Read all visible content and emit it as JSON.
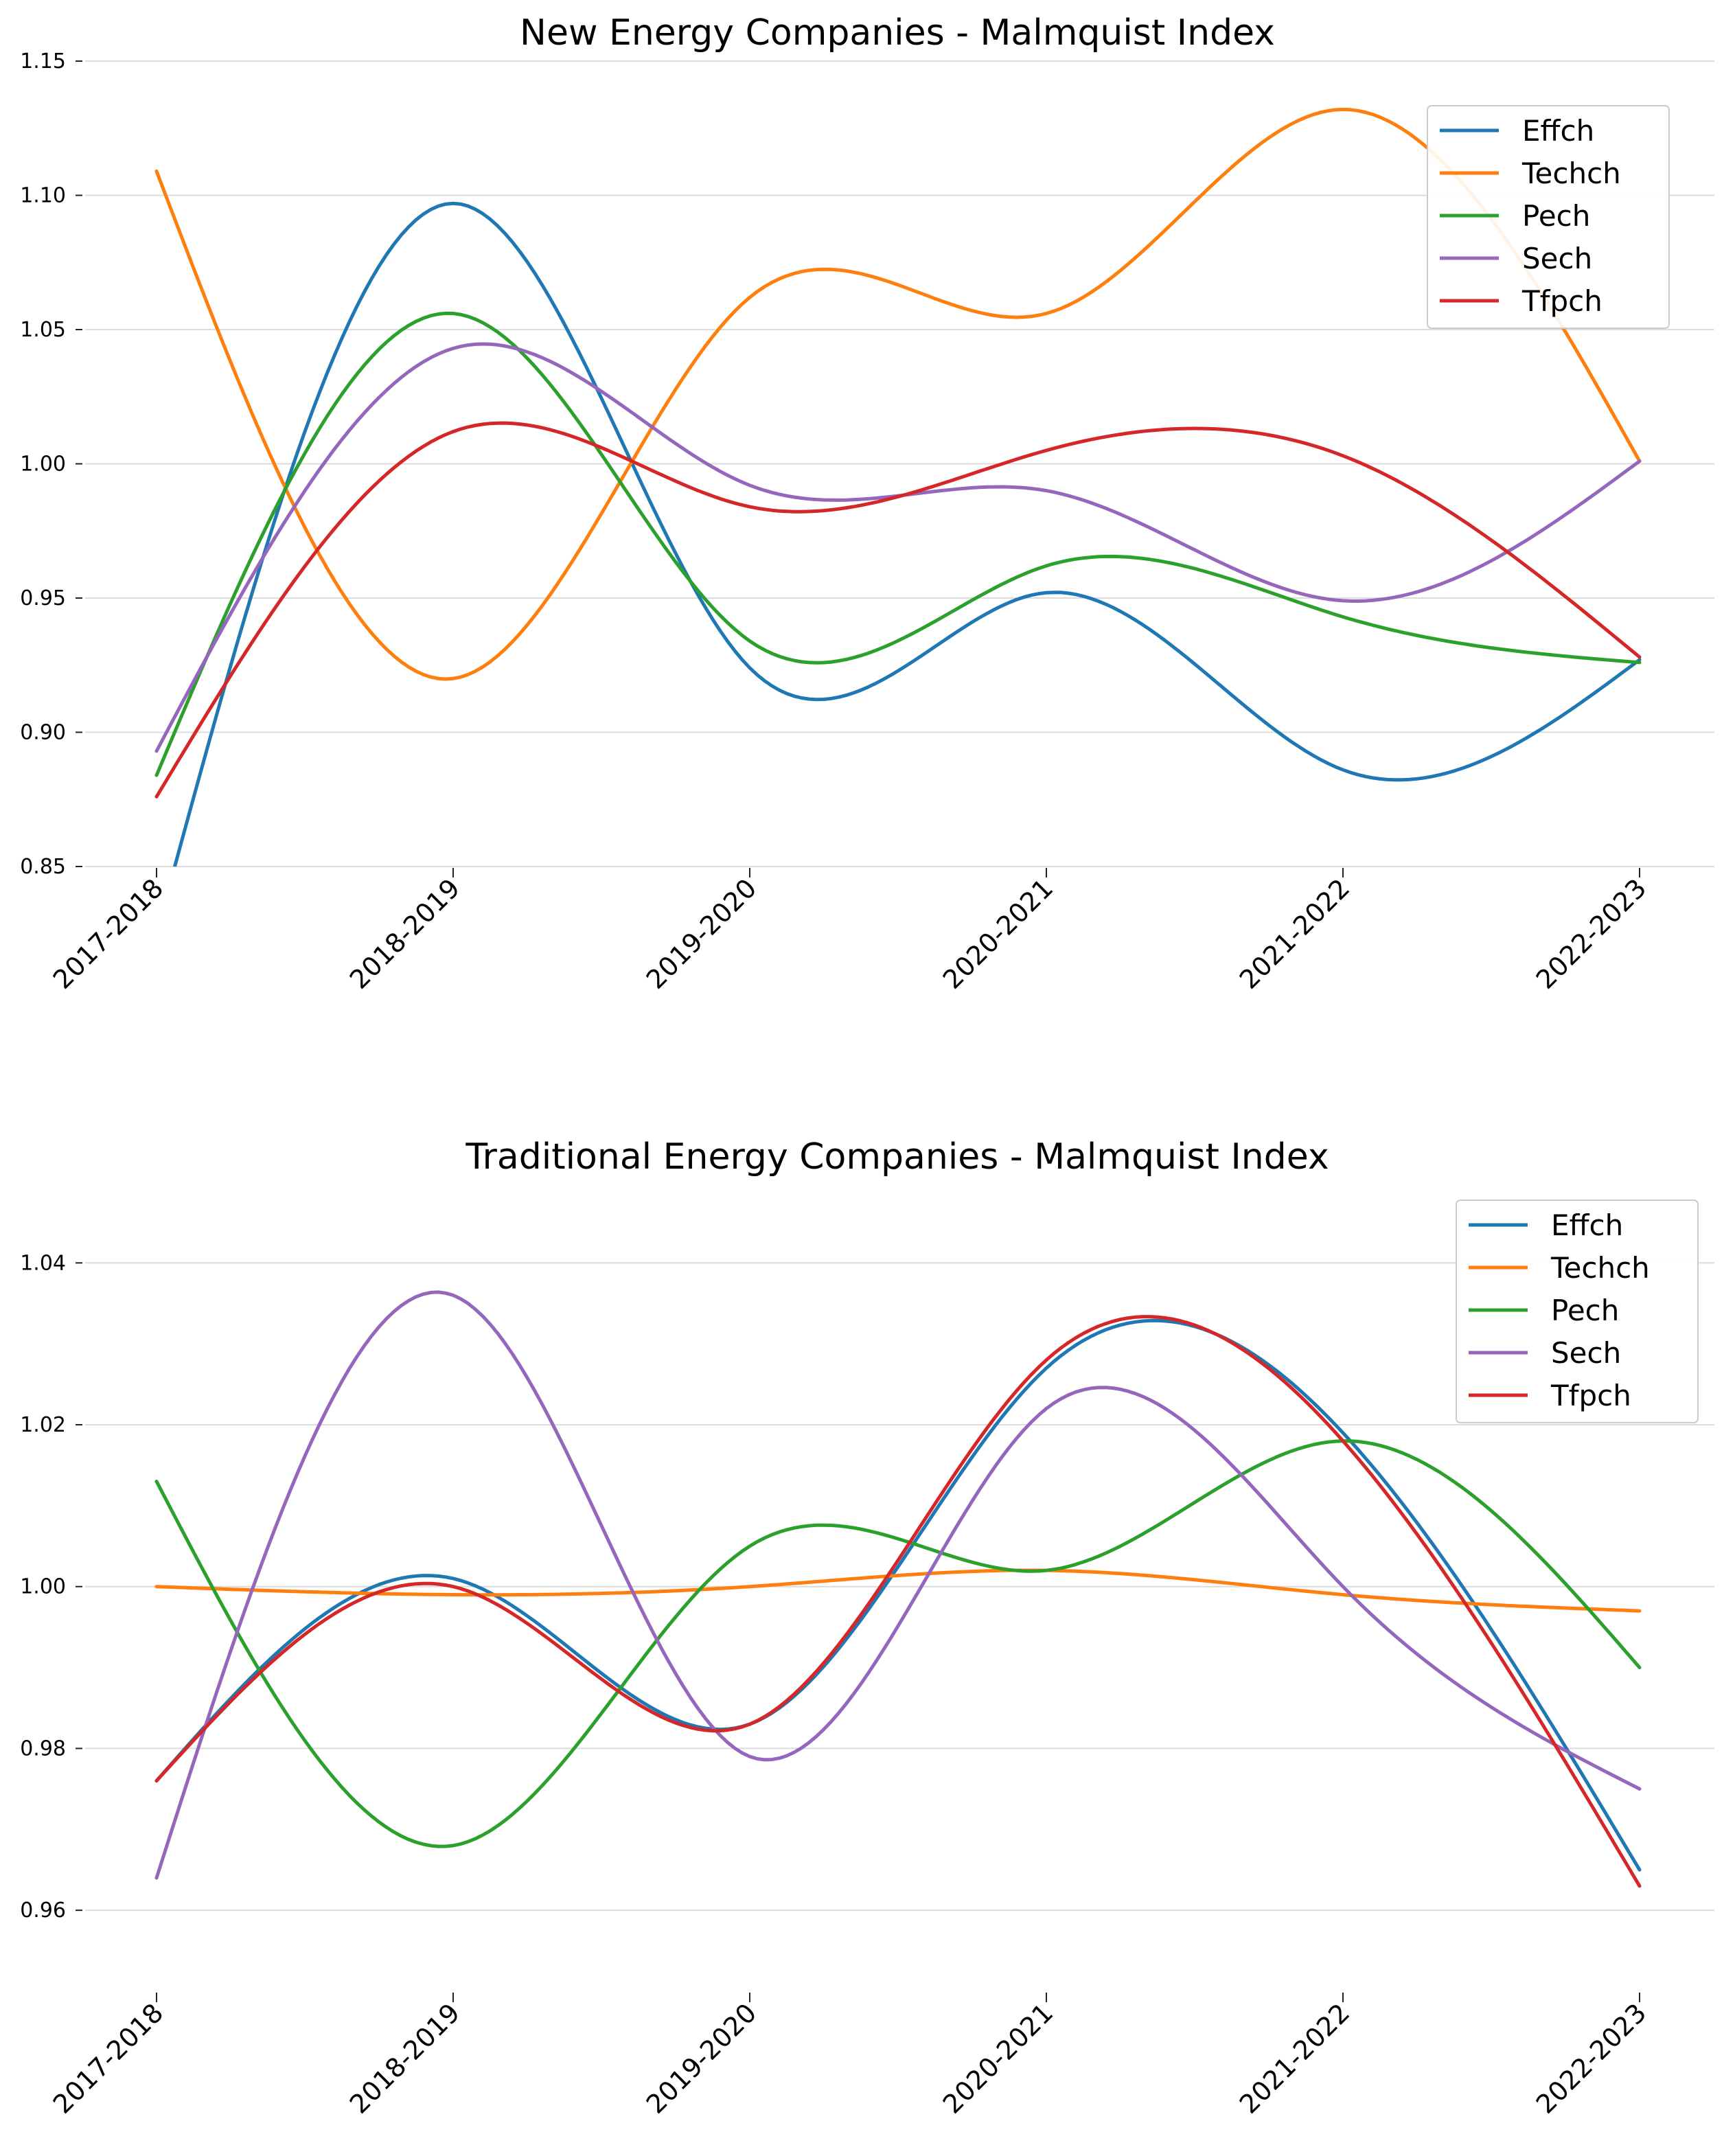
{
  "charts": [
    {
      "type": "line",
      "title": "New Energy Companies - Malmquist Index",
      "categories": [
        "2017-2018",
        "2018-2019",
        "2019-2020",
        "2020-2021",
        "2021-2022",
        "2022-2023"
      ],
      "ylim": [
        0.85,
        1.15
      ],
      "yticks": [
        0.85,
        0.9,
        0.95,
        1.0,
        1.05,
        1.1,
        1.15
      ],
      "ytick_labels": [
        "0.85",
        "0.90",
        "0.95",
        "1.00",
        "1.05",
        "1.10",
        "1.15"
      ],
      "grid": "horizontal",
      "legend_position": "top-right",
      "series": [
        {
          "name": "Effch",
          "color": "#1f77b4",
          "values": [
            0.825,
            1.097,
            0.924,
            0.952,
            0.886,
            0.927
          ]
        },
        {
          "name": "Techch",
          "color": "#ff7f0e",
          "values": [
            1.109,
            0.92,
            1.062,
            1.056,
            1.132,
            1.001
          ]
        },
        {
          "name": "Pech",
          "color": "#2ca02c",
          "values": [
            0.884,
            1.056,
            0.934,
            0.962,
            0.943,
            0.926
          ]
        },
        {
          "name": "Sech",
          "color": "#9467bd",
          "values": [
            0.893,
            1.043,
            0.992,
            0.99,
            0.949,
            1.001
          ]
        },
        {
          "name": "Tfpch",
          "color": "#d62728",
          "values": [
            0.876,
            1.012,
            0.984,
            1.005,
            1.003,
            0.928
          ]
        }
      ]
    },
    {
      "type": "line",
      "title": "Traditional Energy Companies - Malmquist Index",
      "categories": [
        "2017-2018",
        "2018-2019",
        "2019-2020",
        "2020-2021",
        "2021-2022",
        "2022-2023"
      ],
      "ylim": [
        0.95,
        1.048
      ],
      "yticks": [
        0.96,
        0.98,
        1.0,
        1.02,
        1.04
      ],
      "ytick_labels": [
        "0.96",
        "0.98",
        "1.00",
        "1.02",
        "1.04"
      ],
      "grid": "horizontal",
      "legend_position": "top-right",
      "series": [
        {
          "name": "Effch",
          "color": "#1f77b4",
          "values": [
            0.976,
            1.001,
            0.983,
            1.027,
            1.019,
            0.965
          ]
        },
        {
          "name": "Techch",
          "color": "#ff7f0e",
          "values": [
            1.0,
            0.999,
            1.0,
            1.002,
            0.999,
            0.997
          ]
        },
        {
          "name": "Pech",
          "color": "#2ca02c",
          "values": [
            1.013,
            0.968,
            1.005,
            1.002,
            1.018,
            0.99
          ]
        },
        {
          "name": "Sech",
          "color": "#9467bd",
          "values": [
            0.964,
            1.036,
            0.979,
            1.022,
            1.0,
            0.975
          ]
        },
        {
          "name": "Tfpch",
          "color": "#d62728",
          "values": [
            0.976,
            1.0,
            0.983,
            1.028,
            1.018,
            0.963
          ]
        }
      ]
    }
  ]
}
